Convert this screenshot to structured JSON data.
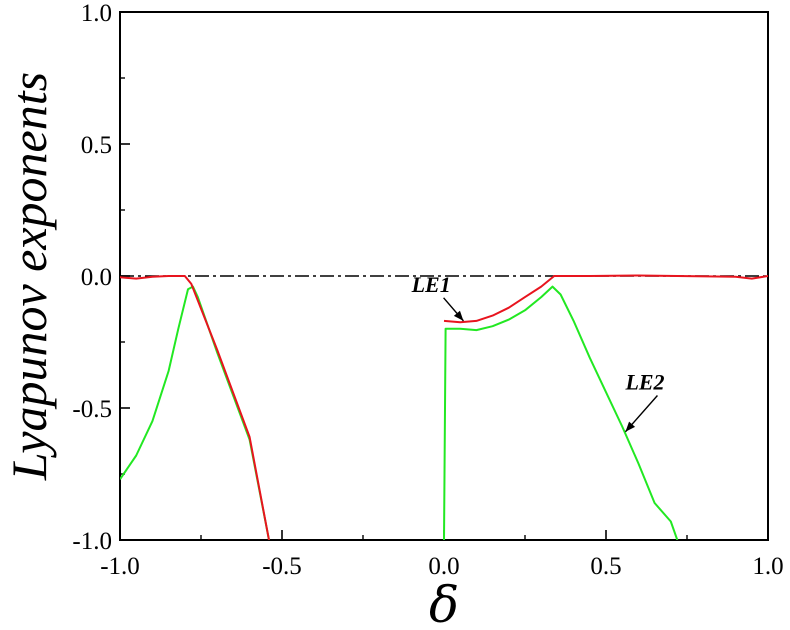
{
  "chart_data": {
    "type": "line",
    "xlabel": "δ",
    "ylabel": "Lyapunov exponents",
    "xlim": [
      -1.0,
      1.0
    ],
    "ylim": [
      -1.0,
      1.0
    ],
    "xticks": [
      "-1.0",
      "-0.5",
      "0.0",
      "0.5",
      "1.0"
    ],
    "yticks": [
      "1.0",
      "0.5",
      "0.0",
      "-0.5",
      "-1.0"
    ],
    "grid": false,
    "series": [
      {
        "name": "LE1",
        "color": "#e8141e",
        "segments": [
          [
            [
              -1.0,
              -0.005
            ],
            [
              -0.95,
              -0.01
            ],
            [
              -0.9,
              -0.003
            ],
            [
              -0.85,
              0.0
            ],
            [
              -0.8,
              0.0
            ],
            [
              -0.78,
              -0.03
            ],
            [
              -0.7,
              -0.28
            ],
            [
              -0.6,
              -0.61
            ],
            [
              -0.54,
              -1.0
            ]
          ],
          [
            [
              0.0,
              -0.17
            ],
            [
              0.05,
              -0.175
            ],
            [
              0.1,
              -0.17
            ],
            [
              0.15,
              -0.15
            ],
            [
              0.2,
              -0.12
            ],
            [
              0.25,
              -0.08
            ],
            [
              0.3,
              -0.04
            ],
            [
              0.34,
              0.0
            ],
            [
              0.45,
              0.0
            ],
            [
              0.6,
              0.002
            ],
            [
              0.9,
              -0.003
            ],
            [
              0.95,
              -0.01
            ],
            [
              1.0,
              0.0
            ]
          ]
        ]
      },
      {
        "name": "LE2",
        "color": "#22e822",
        "segments": [
          [
            [
              -1.0,
              -0.77
            ],
            [
              -0.95,
              -0.68
            ],
            [
              -0.9,
              -0.55
            ],
            [
              -0.85,
              -0.36
            ],
            [
              -0.82,
              -0.2
            ],
            [
              -0.79,
              -0.05
            ],
            [
              -0.775,
              -0.04
            ],
            [
              -0.76,
              -0.08
            ],
            [
              -0.7,
              -0.29
            ],
            [
              -0.6,
              -0.62
            ],
            [
              -0.54,
              -1.0
            ]
          ],
          [
            [
              0.0,
              -1.0
            ],
            [
              0.005,
              -0.2
            ],
            [
              0.05,
              -0.2
            ],
            [
              0.1,
              -0.205
            ],
            [
              0.15,
              -0.19
            ],
            [
              0.2,
              -0.165
            ],
            [
              0.25,
              -0.13
            ],
            [
              0.3,
              -0.08
            ],
            [
              0.335,
              -0.04
            ],
            [
              0.36,
              -0.07
            ],
            [
              0.4,
              -0.17
            ],
            [
              0.45,
              -0.31
            ],
            [
              0.5,
              -0.44
            ],
            [
              0.55,
              -0.57
            ],
            [
              0.6,
              -0.71
            ],
            [
              0.65,
              -0.86
            ],
            [
              0.7,
              -0.93
            ],
            [
              0.72,
              -1.0
            ]
          ]
        ]
      }
    ],
    "reference_line": {
      "y": 0.0,
      "style": "dash-dot",
      "color": "#000000"
    },
    "annotations": [
      {
        "text": "LE1",
        "x": -0.1,
        "y": -0.06,
        "arrow_to": [
          0.06,
          -0.17
        ]
      },
      {
        "text": "LE2",
        "x": 0.56,
        "y": -0.43,
        "arrow_to": [
          0.56,
          -0.59
        ]
      }
    ]
  }
}
